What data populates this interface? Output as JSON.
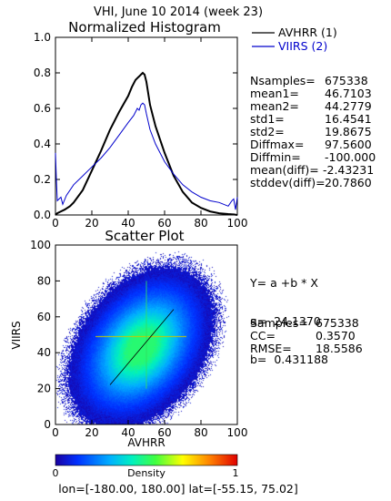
{
  "page_title": "VHI,  June 10 2014 (week 23)",
  "chart_data": [
    {
      "type": "line",
      "title": "Normalized Histogram",
      "xlim": [
        0,
        100
      ],
      "ylim": [
        0,
        1.0
      ],
      "x_ticks": [
        "0",
        "20",
        "40",
        "60",
        "80",
        "100"
      ],
      "y_ticks": [
        "0.0",
        "0.2",
        "0.4",
        "0.6",
        "0.8",
        "1.0"
      ],
      "series": [
        {
          "name": "AVHRR (1)",
          "color": "#000000",
          "x": [
            0,
            1,
            2,
            3,
            5,
            8,
            10,
            15,
            20,
            25,
            30,
            35,
            40,
            42,
            44,
            45,
            46,
            47,
            48,
            49,
            50,
            52,
            55,
            60,
            65,
            70,
            75,
            80,
            85,
            90,
            95,
            98,
            100
          ],
          "y": [
            0.0,
            0.01,
            0.015,
            0.02,
            0.03,
            0.05,
            0.07,
            0.14,
            0.25,
            0.36,
            0.48,
            0.58,
            0.67,
            0.72,
            0.76,
            0.77,
            0.78,
            0.79,
            0.8,
            0.79,
            0.75,
            0.62,
            0.5,
            0.35,
            0.22,
            0.13,
            0.07,
            0.04,
            0.02,
            0.01,
            0.005,
            0.003,
            0.0
          ]
        },
        {
          "name": "VIIRS (2)",
          "color": "#0000cc",
          "x": [
            0,
            0.5,
            1,
            2,
            3,
            4,
            6,
            10,
            15,
            20,
            25,
            30,
            35,
            40,
            43,
            45,
            46,
            47,
            48,
            49,
            50,
            52,
            55,
            60,
            65,
            70,
            75,
            80,
            85,
            90,
            95,
            97,
            98,
            99,
            100
          ],
          "y": [
            0.35,
            0.2,
            0.08,
            0.09,
            0.1,
            0.06,
            0.11,
            0.17,
            0.22,
            0.27,
            0.32,
            0.38,
            0.45,
            0.52,
            0.56,
            0.6,
            0.59,
            0.62,
            0.63,
            0.62,
            0.57,
            0.48,
            0.4,
            0.3,
            0.23,
            0.17,
            0.13,
            0.1,
            0.08,
            0.07,
            0.05,
            0.08,
            0.09,
            0.03,
            0.1
          ]
        }
      ]
    },
    {
      "type": "heatmap",
      "title": "Scatter Plot",
      "xlabel": "AVHRR",
      "ylabel": "VIIRS",
      "xlim": [
        0,
        100
      ],
      "ylim": [
        0,
        100
      ],
      "x_ticks": [
        "0",
        "20",
        "40",
        "60",
        "80",
        "100"
      ],
      "y_ticks": [
        "0",
        "20",
        "40",
        "60",
        "80",
        "100"
      ],
      "regression": {
        "a": 24.137,
        "b": 0.431188,
        "x_range": [
          30,
          65
        ]
      },
      "density_center": [
        47,
        43
      ],
      "colorbar": {
        "label": "Density",
        "min": "0",
        "max": "1"
      }
    }
  ],
  "legend": [
    {
      "label": "AVHRR (1)",
      "color": "#000000"
    },
    {
      "label": "VIIRS (2)",
      "color": "#0000cc"
    }
  ],
  "histogram_stats": [
    {
      "key": "Nsamples=",
      "value": "675338"
    },
    {
      "key": "mean1=",
      "value": "46.7103"
    },
    {
      "key": "mean2=",
      "value": "44.2779"
    },
    {
      "key": "std1=",
      "value": "16.4541"
    },
    {
      "key": "std2=",
      "value": "19.8675"
    },
    {
      "key": "Diffmax=",
      "value": "97.5600"
    },
    {
      "key": "Diffmin=",
      "value": "-100.000"
    },
    {
      "key": "mean(diff)=",
      "value": "-2.43231"
    },
    {
      "key": "stddev(diff)=",
      "value": "20.7860"
    }
  ],
  "regression_text": {
    "equation": "Y= a +b * X",
    "a_line": "a=  24.1370",
    "b_line": "b=  0.431188"
  },
  "scatter_stats": [
    {
      "key": "Samples=",
      "value": "675338"
    },
    {
      "key": "CC=",
      "value": "0.3570"
    },
    {
      "key": "RMSE=",
      "value": "18.5586"
    }
  ],
  "footer": "lon=[-180.00, 180.00] lat=[-55.15, 75.02]"
}
